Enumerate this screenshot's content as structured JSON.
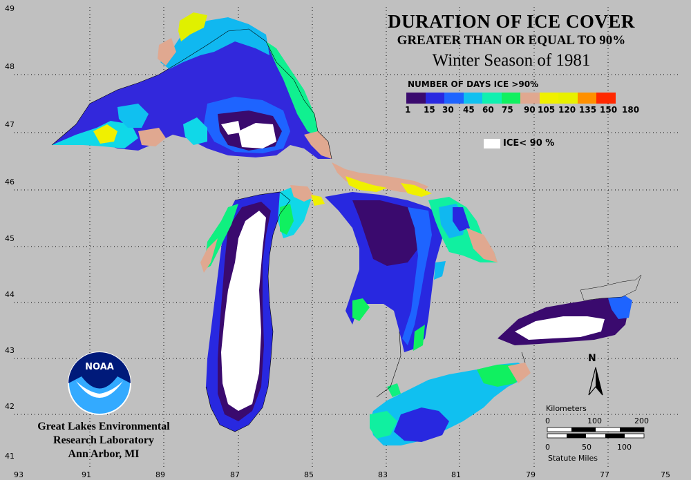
{
  "title": {
    "line1": "DURATION OF ICE COVER",
    "line2": "GREATER THAN OR EQUAL TO 90%",
    "line3": "Winter Season of 1981"
  },
  "legend": {
    "title": "NUMBER OF DAYS ICE >90%",
    "colors": [
      "#3a0a6e",
      "#2828e0",
      "#1e64ff",
      "#10c0f0",
      "#10f0b0",
      "#10f060",
      "#e0a890",
      "#f0f000",
      "#e8f000",
      "#ff9000",
      "#ff2800",
      "#ff1098"
    ],
    "ticks": [
      "1",
      "15",
      "30",
      "45",
      "60",
      "75",
      "90",
      "105",
      "120",
      "135",
      "150",
      "180"
    ],
    "ice_label": "ICE< 90 %"
  },
  "axes": {
    "latitudes": [
      "49",
      "48",
      "47",
      "46",
      "45",
      "44",
      "43",
      "42",
      "41"
    ],
    "longitudes": [
      "93",
      "91",
      "89",
      "87",
      "85",
      "83",
      "81",
      "79",
      "77",
      "75"
    ]
  },
  "organization": {
    "line1": "Great Lakes Environmental",
    "line2": "Research Laboratory",
    "line3": "Ann Arbor, MI",
    "logo_text": "NOAA"
  },
  "scale": {
    "km_label": "Kilometers",
    "km_ticks": [
      "0",
      "100",
      "200"
    ],
    "mi_label": "Statute Miles",
    "mi_ticks": [
      "0",
      "50",
      "100"
    ]
  },
  "north": "N"
}
